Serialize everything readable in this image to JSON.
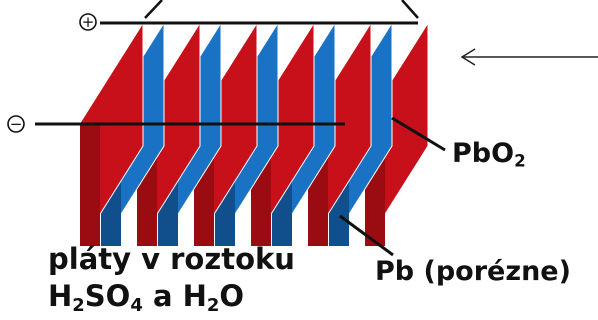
{
  "labels": {
    "positive_sign": "+",
    "negative_sign": "−",
    "pbo2_main": "PbO",
    "pbo2_sub": "2",
    "pb": "Pb (porézne)",
    "plates": "pláty v roztoku",
    "elec_h": "H",
    "elec_h_sub": "2",
    "elec_so": "SO",
    "elec_so_sub": "4",
    "elec_and": " a H",
    "elec_h2_sub": "2",
    "elec_o": "O"
  },
  "colors": {
    "red_plate": "#c8101a",
    "red_plate_dark": "#9a0b12",
    "blue_plate": "#1a72c4",
    "blue_plate_dark": "#104f8c",
    "line": "#111111"
  },
  "plates": {
    "red_count": 6,
    "blue_count": 5
  },
  "icons": {
    "arrow": "left-arrow-icon",
    "positive": "plus-circle-icon",
    "negative": "minus-circle-icon"
  }
}
